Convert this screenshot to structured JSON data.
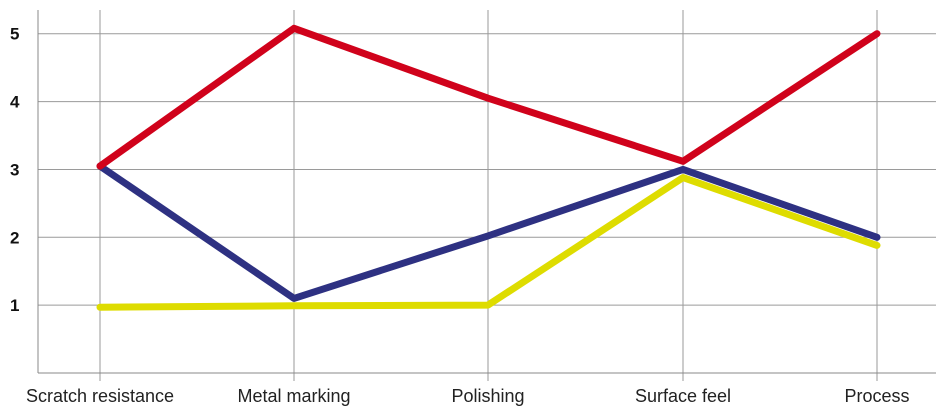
{
  "chart_data": {
    "type": "line",
    "categories": [
      "Scratch resistance",
      "Metal marking",
      "Polishing",
      "Surface feel",
      "Process"
    ],
    "ylim": [
      0,
      5.35
    ],
    "yticks": [
      "1",
      "2",
      "3",
      "4",
      "5"
    ],
    "grid": true,
    "series": [
      {
        "color": "#d0021b",
        "values": [
          3.05,
          5.08,
          4.05,
          3.12,
          5.0
        ]
      },
      {
        "color": "#2e3182",
        "values": [
          3.05,
          1.1,
          2.02,
          3.0,
          2.0
        ]
      },
      {
        "color": "#dedc00",
        "values": [
          0.97,
          0.99,
          1.0,
          2.88,
          1.88
        ]
      }
    ]
  }
}
